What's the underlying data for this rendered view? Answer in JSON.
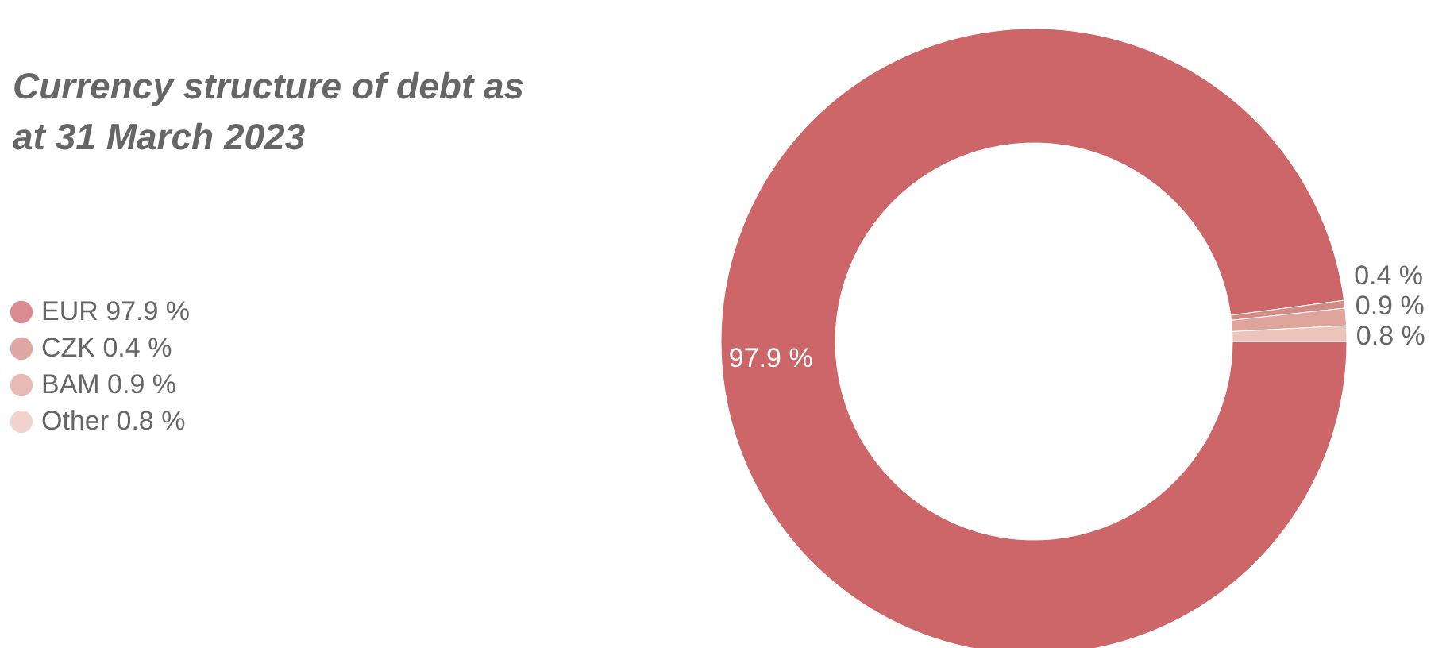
{
  "chart_data": {
    "type": "donut",
    "title": "Currency structure of debt as at 31 March 2023",
    "categories": [
      "EUR",
      "CZK",
      "BAM",
      "Other"
    ],
    "values": [
      97.9,
      0.4,
      0.9,
      0.8
    ],
    "value_labels": [
      "97.9 %",
      "0.4 %",
      "0.9 %",
      "0.8 %"
    ],
    "colors": [
      "#cc6669",
      "#d58b85",
      "#dfa49b",
      "#ebc4bb"
    ],
    "legend": "left"
  }
}
